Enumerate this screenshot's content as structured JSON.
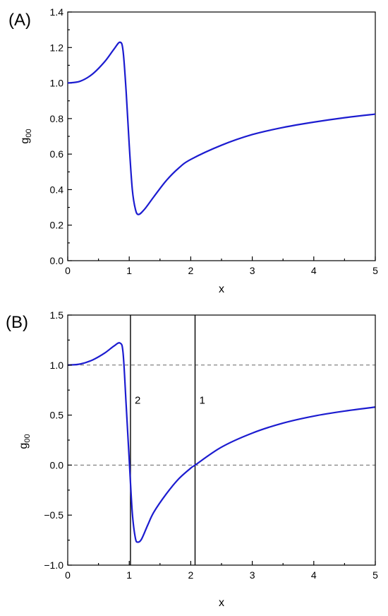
{
  "chart_data": [
    {
      "type": "line",
      "panel_label": "(A)",
      "xlabel": "x",
      "ylabel_main": "g",
      "ylabel_sub": "00",
      "xlim": [
        0,
        5
      ],
      "ylim": [
        0.0,
        1.4
      ],
      "xticks": [
        0,
        1,
        2,
        3,
        4,
        5
      ],
      "xtick_labels": [
        "0",
        "1",
        "2",
        "3",
        "4",
        "5"
      ],
      "yticks": [
        0.0,
        0.2,
        0.4,
        0.6,
        0.8,
        1.0,
        1.2,
        1.4
      ],
      "ytick_labels": [
        "0.0",
        "0.2",
        "0.4",
        "0.6",
        "0.8",
        "1.0",
        "1.2",
        "1.4"
      ],
      "grid": false,
      "series": [
        {
          "color": "#1c1cd0",
          "x": [
            0,
            0.2,
            0.4,
            0.6,
            0.75,
            0.85,
            0.9,
            0.95,
            1.0,
            1.05,
            1.1,
            1.15,
            1.25,
            1.4,
            1.6,
            1.8,
            2.0,
            2.5,
            3.0,
            3.5,
            4.0,
            4.5,
            5.0
          ],
          "y": [
            1.0,
            1.01,
            1.05,
            1.12,
            1.19,
            1.23,
            1.18,
            0.95,
            0.65,
            0.4,
            0.29,
            0.26,
            0.29,
            0.36,
            0.45,
            0.52,
            0.57,
            0.65,
            0.71,
            0.75,
            0.78,
            0.805,
            0.825
          ]
        }
      ]
    },
    {
      "type": "line",
      "panel_label": "(B)",
      "xlabel": "x",
      "ylabel_main": "g",
      "ylabel_sub": "00",
      "xlim": [
        0,
        5
      ],
      "ylim": [
        -1.0,
        1.5
      ],
      "xticks": [
        0,
        1,
        2,
        3,
        4,
        5
      ],
      "xtick_labels": [
        "0",
        "1",
        "2",
        "3",
        "4",
        "5"
      ],
      "yticks": [
        -1.0,
        -0.5,
        0.0,
        0.5,
        1.0,
        1.5
      ],
      "ytick_labels": [
        "−1.0",
        "−0.5",
        "0.0",
        "0.5",
        "1.0",
        "1.5"
      ],
      "grid": false,
      "reference_lines_y": [
        1.0,
        0.0
      ],
      "vertical_lines": [
        {
          "x": 1.02,
          "label": "2"
        },
        {
          "x": 2.07,
          "label": "1"
        }
      ],
      "series": [
        {
          "color": "#1c1cd0",
          "x": [
            0,
            0.2,
            0.4,
            0.6,
            0.75,
            0.85,
            0.9,
            0.95,
            1.0,
            1.05,
            1.1,
            1.14,
            1.2,
            1.3,
            1.4,
            1.6,
            1.8,
            2.0,
            2.07,
            2.5,
            3.0,
            3.5,
            4.0,
            4.5,
            5.0
          ],
          "y": [
            1.0,
            1.01,
            1.05,
            1.12,
            1.19,
            1.22,
            1.12,
            0.6,
            0.05,
            -0.48,
            -0.73,
            -0.77,
            -0.74,
            -0.6,
            -0.47,
            -0.29,
            -0.14,
            -0.03,
            0.0,
            0.18,
            0.32,
            0.42,
            0.49,
            0.54,
            0.58
          ]
        }
      ]
    }
  ]
}
